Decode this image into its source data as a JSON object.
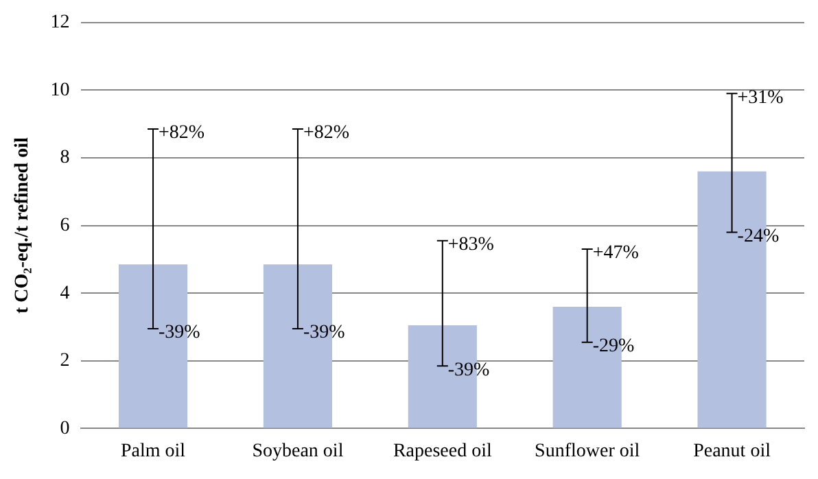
{
  "chart_data": {
    "type": "bar",
    "ylabel": "t CO₂-eq./t refined oil",
    "categories": [
      "Palm oil",
      "Soybean oil",
      "Rapeseed oil",
      "Sunflower oil",
      "Peanut oil"
    ],
    "values": [
      4.85,
      4.85,
      3.05,
      3.6,
      7.6
    ],
    "errors": [
      [
        2.95,
        8.85
      ],
      [
        2.95,
        8.85
      ],
      [
        1.85,
        5.55
      ],
      [
        2.55,
        5.3
      ],
      [
        5.8,
        9.9
      ]
    ],
    "color": "#b4c0df",
    "ylim": [
      0,
      12
    ],
    "yticks": [
      0,
      2,
      4,
      6,
      8,
      10,
      12
    ],
    "grid": "y",
    "legend": false,
    "annotations": [
      {
        "text": "+82%",
        "x": "Palm oil",
        "y": 8.85
      },
      {
        "text": "-39%",
        "x": "Palm oil",
        "y": 2.95
      },
      {
        "text": "+82%",
        "x": "Soybean oil",
        "y": 8.85
      },
      {
        "text": "-39%",
        "x": "Soybean oil",
        "y": 2.95
      },
      {
        "text": "+83%",
        "x": "Rapeseed oil",
        "y": 5.55
      },
      {
        "text": "-39%",
        "x": "Rapeseed oil",
        "y": 1.85
      },
      {
        "text": "+47%",
        "x": "Sunflower oil",
        "y": 5.3
      },
      {
        "text": "-29%",
        "x": "Sunflower oil",
        "y": 2.55
      },
      {
        "text": "+31%",
        "x": "Peanut oil",
        "y": 9.9
      },
      {
        "text": "-24%",
        "x": "Peanut oil",
        "y": 5.8
      }
    ]
  }
}
